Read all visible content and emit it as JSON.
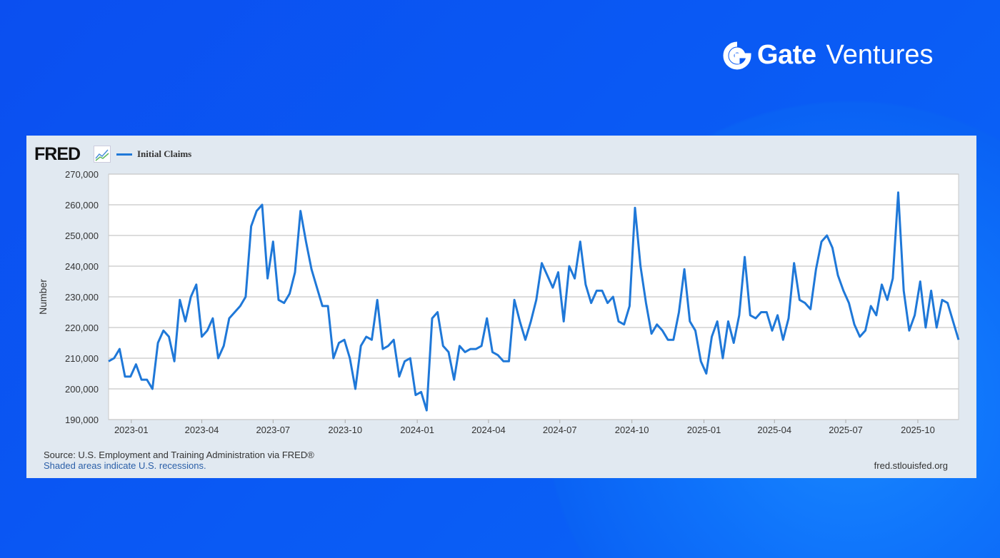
{
  "branding": {
    "logo_brand": "Gate",
    "logo_sub": "Ventures",
    "fred_logo": "FRED"
  },
  "colors": {
    "background": "#0b55f2",
    "line": "#1f78d8",
    "card": "#e1e9f1"
  },
  "footer": {
    "source": "Source: U.S. Employment and Training Administration via FRED®",
    "recessions": "Shaded areas indicate U.S. recessions.",
    "url": "fred.stlouisfed.org"
  },
  "chart_data": {
    "type": "line",
    "title": "",
    "xlabel": "",
    "ylabel": "Number",
    "ylim": [
      190000,
      270000
    ],
    "yticks": [
      190000,
      200000,
      210000,
      220000,
      230000,
      240000,
      250000,
      260000,
      270000
    ],
    "ytick_labels": [
      "190,000",
      "200,000",
      "210,000",
      "220,000",
      "230,000",
      "240,000",
      "250,000",
      "260,000",
      "270,000"
    ],
    "xticks": [
      "2023-01",
      "2023-04",
      "2023-07",
      "2023-10",
      "2024-01",
      "2024-04",
      "2024-07",
      "2024-10",
      "2025-01",
      "2025-04",
      "2025-07",
      "2025-10"
    ],
    "grid": true,
    "legend": "top-left",
    "series": [
      {
        "name": "Initial Claims",
        "x": [
          "2022-12-03",
          "2022-12-10",
          "2022-12-17",
          "2022-12-24",
          "2022-12-31",
          "2023-01-07",
          "2023-01-14",
          "2023-01-21",
          "2023-01-28",
          "2023-02-04",
          "2023-02-11",
          "2023-02-18",
          "2023-02-25",
          "2023-03-04",
          "2023-03-11",
          "2023-03-18",
          "2023-03-25",
          "2023-04-01",
          "2023-04-08",
          "2023-04-15",
          "2023-04-22",
          "2023-04-29",
          "2023-05-06",
          "2023-05-13",
          "2023-05-20",
          "2023-05-27",
          "2023-06-03",
          "2023-06-10",
          "2023-06-17",
          "2023-06-24",
          "2023-07-01",
          "2023-07-08",
          "2023-07-15",
          "2023-07-22",
          "2023-07-29",
          "2023-08-05",
          "2023-08-12",
          "2023-08-19",
          "2023-08-26",
          "2023-09-02",
          "2023-09-09",
          "2023-09-16",
          "2023-09-23",
          "2023-09-30",
          "2023-10-07",
          "2023-10-14",
          "2023-10-21",
          "2023-10-28",
          "2023-11-04",
          "2023-11-11",
          "2023-11-18",
          "2023-11-25",
          "2023-12-02",
          "2023-12-09",
          "2023-12-16",
          "2023-12-23",
          "2023-12-30",
          "2024-01-06",
          "2024-01-13",
          "2024-01-20",
          "2024-01-27",
          "2024-02-03",
          "2024-02-10",
          "2024-02-17",
          "2024-02-24",
          "2024-03-02",
          "2024-03-09",
          "2024-03-16",
          "2024-03-23",
          "2024-03-30",
          "2024-04-06",
          "2024-04-13",
          "2024-04-20",
          "2024-04-27",
          "2024-05-04",
          "2024-05-11",
          "2024-05-18",
          "2024-05-25",
          "2024-06-01",
          "2024-06-08",
          "2024-06-15",
          "2024-06-22",
          "2024-06-29",
          "2024-07-06",
          "2024-07-13",
          "2024-07-20",
          "2024-07-27",
          "2024-08-03",
          "2024-08-10",
          "2024-08-17",
          "2024-08-24",
          "2024-08-31",
          "2024-09-07",
          "2024-09-14",
          "2024-09-21",
          "2024-09-28",
          "2024-10-05",
          "2024-10-12",
          "2024-10-19",
          "2024-10-26",
          "2024-11-02",
          "2024-11-09",
          "2024-11-16",
          "2024-11-23",
          "2024-11-30",
          "2024-12-07",
          "2024-12-14",
          "2024-12-21",
          "2024-12-28",
          "2025-01-04",
          "2025-01-11",
          "2025-01-18",
          "2025-01-25",
          "2025-02-01",
          "2025-02-08",
          "2025-02-15",
          "2025-02-22",
          "2025-03-01",
          "2025-03-08",
          "2025-03-15",
          "2025-03-22",
          "2025-03-29",
          "2025-04-05",
          "2025-04-12",
          "2025-04-19",
          "2025-04-26",
          "2025-05-03",
          "2025-05-10",
          "2025-05-17",
          "2025-05-24",
          "2025-05-31",
          "2025-06-07",
          "2025-06-14",
          "2025-06-21",
          "2025-06-28",
          "2025-07-05",
          "2025-07-12",
          "2025-07-19",
          "2025-07-26",
          "2025-08-02",
          "2025-08-09",
          "2025-08-16",
          "2025-08-23",
          "2025-08-30",
          "2025-09-06",
          "2025-09-13",
          "2025-09-20",
          "2025-09-27",
          "2025-10-04",
          "2025-10-11",
          "2025-10-18",
          "2025-10-25",
          "2025-11-01",
          "2025-11-08",
          "2025-11-15",
          "2025-11-22"
        ],
        "values": [
          209000,
          210000,
          213000,
          204000,
          204000,
          208000,
          203000,
          203000,
          200000,
          215000,
          219000,
          217000,
          209000,
          229000,
          222000,
          230000,
          234000,
          217000,
          219000,
          223000,
          210000,
          214000,
          223000,
          225000,
          227000,
          230000,
          253000,
          258000,
          260000,
          236000,
          248000,
          229000,
          228000,
          231000,
          238000,
          258000,
          248000,
          239000,
          233000,
          227000,
          227000,
          210000,
          215000,
          216000,
          210000,
          200000,
          214000,
          217000,
          216000,
          229000,
          213000,
          214000,
          216000,
          204000,
          209000,
          210000,
          198000,
          199000,
          193000,
          223000,
          225000,
          214000,
          212000,
          203000,
          214000,
          212000,
          213000,
          213000,
          214000,
          223000,
          212000,
          211000,
          209000,
          209000,
          229000,
          222000,
          216000,
          222000,
          229000,
          241000,
          237000,
          233000,
          238000,
          222000,
          240000,
          236000,
          248000,
          234000,
          228000,
          232000,
          232000,
          228000,
          230000,
          222000,
          221000,
          227000,
          259000,
          240000,
          228000,
          218000,
          221000,
          219000,
          216000,
          216000,
          225000,
          239000,
          222000,
          219000,
          209000,
          205000,
          217000,
          222000,
          210000,
          222000,
          215000,
          224000,
          243000,
          224000,
          223000,
          225000,
          225000,
          219000,
          224000,
          216000,
          223000,
          241000,
          229000,
          228000,
          226000,
          239000,
          248000,
          250000,
          246000,
          237000,
          232000,
          228000,
          221000,
          217000,
          219000,
          227000,
          224000,
          234000,
          229000,
          236000,
          264000,
          232000,
          219000,
          224000,
          235000,
          220000,
          232000,
          220000,
          229000,
          228000,
          222000,
          216000
        ]
      }
    ]
  }
}
